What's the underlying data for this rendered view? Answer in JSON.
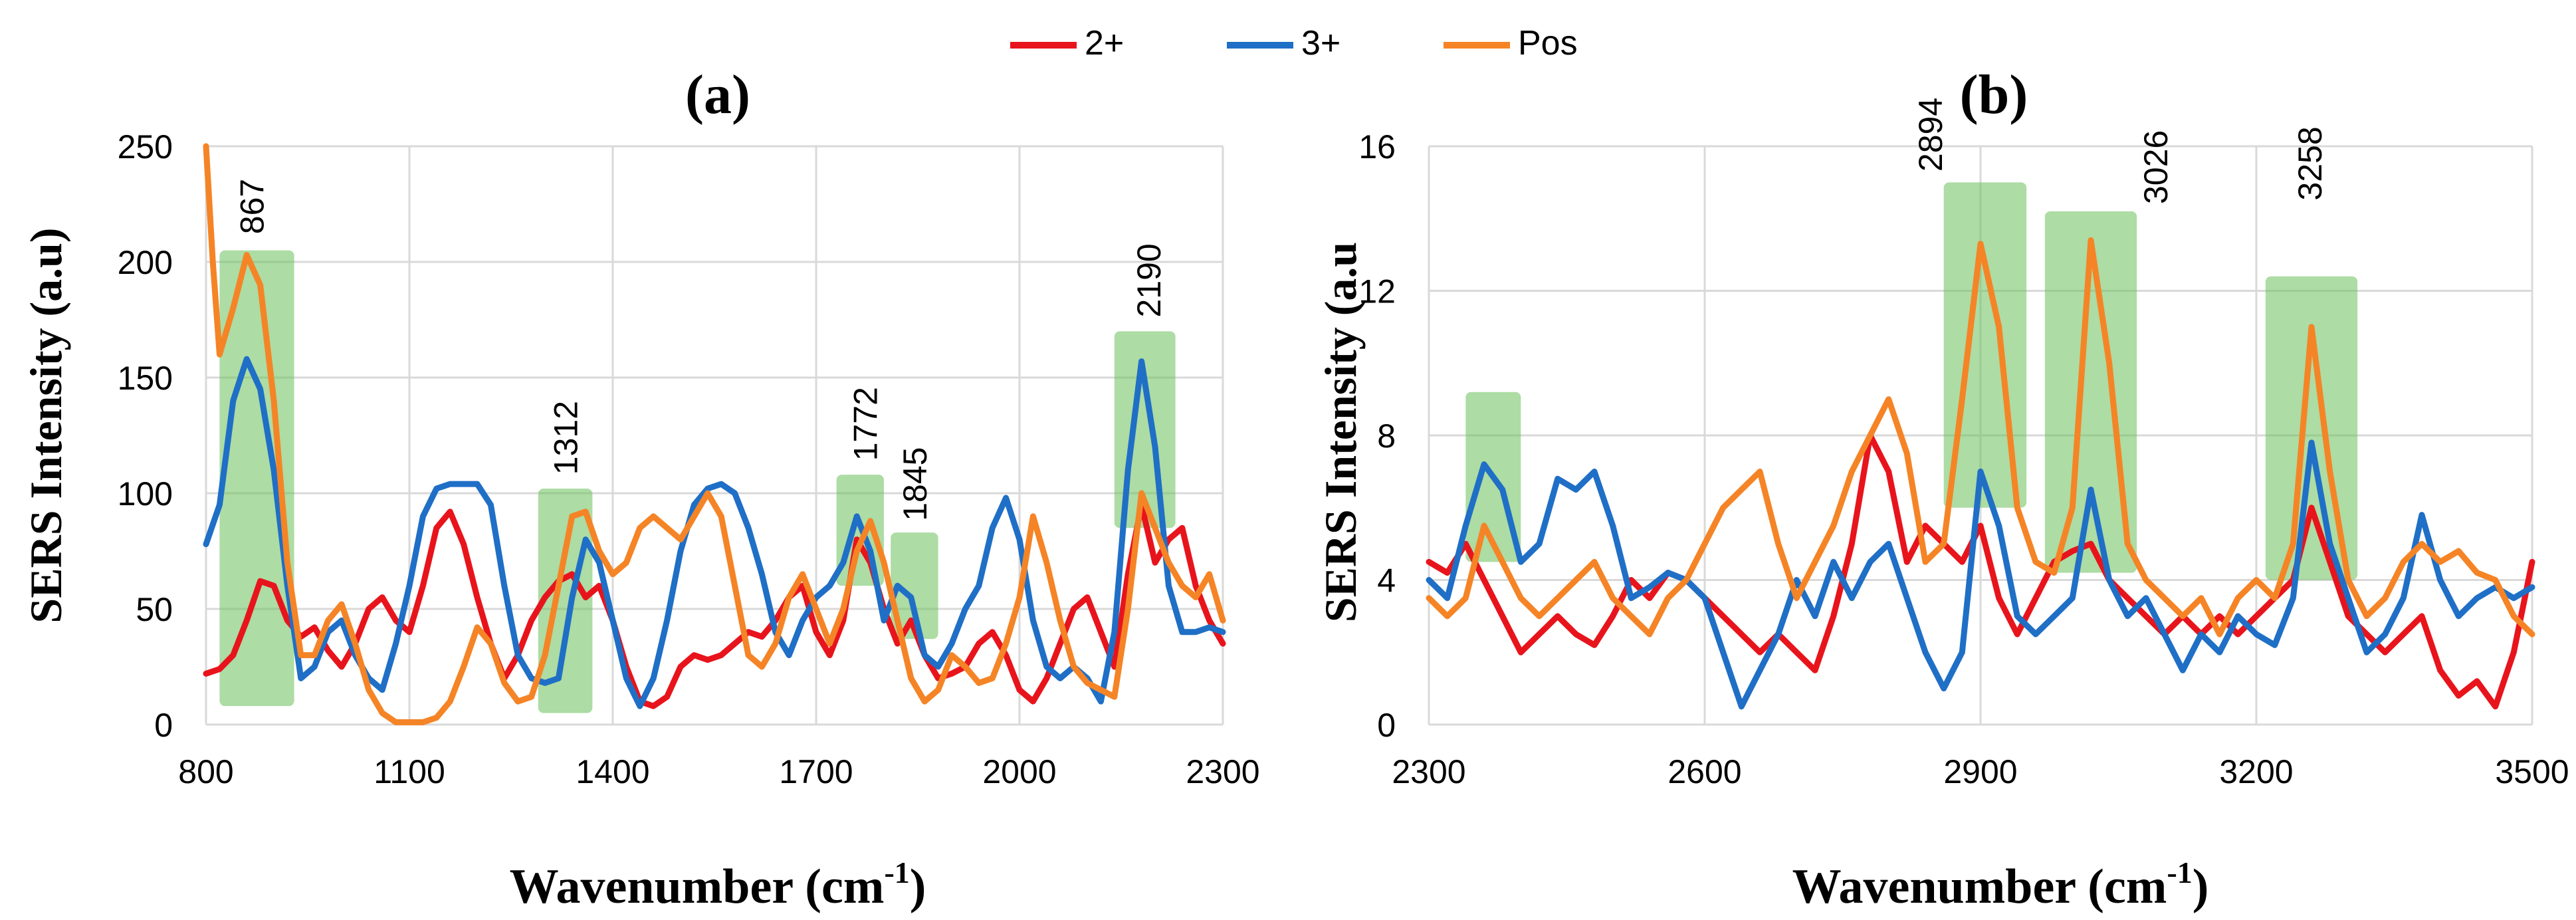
{
  "legend": [
    {
      "key": "2+",
      "label": "2+",
      "color": "#e8141c"
    },
    {
      "key": "3+",
      "label": "3+",
      "color": "#1f6fc6"
    },
    {
      "key": "pos",
      "label": "Pos",
      "color": "#f58426"
    }
  ],
  "chart_data": [
    {
      "type": "line",
      "panel_label": "(a)",
      "xlabel": "Wavenumber (cm",
      "xlabel_sup": "-1",
      "xlabel_end": ")",
      "ylabel": "SERS Intensity (a.u)",
      "xlim": [
        800,
        2300
      ],
      "ylim": [
        0,
        250
      ],
      "xticks": [
        800,
        1100,
        1400,
        1700,
        2000,
        2300
      ],
      "xtick_labels": [
        "800",
        "1100",
        "1400",
        "1700",
        "2000",
        "2300"
      ],
      "yticks": [
        0,
        50,
        100,
        150,
        200,
        250
      ],
      "ytick_labels": [
        "0",
        "50",
        "100",
        "150",
        "200",
        "250"
      ],
      "highlights": [
        {
          "x0": 820,
          "x1": 930,
          "y0": 8,
          "y1": 205
        },
        {
          "x0": 1290,
          "x1": 1370,
          "y0": 5,
          "y1": 102
        },
        {
          "x0": 1730,
          "x1": 1800,
          "y0": 60,
          "y1": 108
        },
        {
          "x0": 1810,
          "x1": 1880,
          "y0": 37,
          "y1": 83
        },
        {
          "x0": 2140,
          "x1": 2230,
          "y0": 85,
          "y1": 170
        }
      ],
      "peak_labels": [
        {
          "text": "867",
          "x": 867,
          "y": 212
        },
        {
          "text": "1312",
          "x": 1330,
          "y": 108
        },
        {
          "text": "1772",
          "x": 1772,
          "y": 114
        },
        {
          "text": "1845",
          "x": 1845,
          "y": 88
        },
        {
          "text": "2190",
          "x": 2190,
          "y": 176
        }
      ],
      "series": [
        {
          "key": "2+",
          "name": "2+",
          "x": [
            800,
            820,
            840,
            860,
            880,
            900,
            920,
            940,
            960,
            980,
            1000,
            1020,
            1040,
            1060,
            1080,
            1100,
            1120,
            1140,
            1160,
            1180,
            1200,
            1220,
            1240,
            1260,
            1280,
            1300,
            1320,
            1340,
            1360,
            1380,
            1400,
            1420,
            1440,
            1460,
            1480,
            1500,
            1520,
            1540,
            1560,
            1580,
            1600,
            1620,
            1640,
            1660,
            1680,
            1700,
            1720,
            1740,
            1760,
            1780,
            1800,
            1820,
            1840,
            1860,
            1880,
            1900,
            1920,
            1940,
            1960,
            1980,
            2000,
            2020,
            2040,
            2060,
            2080,
            2100,
            2120,
            2140,
            2160,
            2180,
            2200,
            2220,
            2240,
            2260,
            2280,
            2300
          ],
          "values": [
            22,
            24,
            30,
            45,
            62,
            60,
            45,
            38,
            42,
            32,
            25,
            35,
            50,
            55,
            45,
            40,
            60,
            85,
            92,
            78,
            55,
            35,
            20,
            30,
            45,
            55,
            62,
            65,
            55,
            60,
            45,
            25,
            10,
            8,
            12,
            25,
            30,
            28,
            30,
            35,
            40,
            38,
            45,
            55,
            60,
            40,
            30,
            45,
            80,
            70,
            50,
            35,
            45,
            30,
            20,
            22,
            25,
            35,
            40,
            30,
            15,
            10,
            20,
            35,
            50,
            55,
            40,
            25,
            65,
            95,
            70,
            80,
            85,
            60,
            45,
            35
          ]
        },
        {
          "key": "3+",
          "name": "3+",
          "x": [
            800,
            820,
            840,
            860,
            880,
            900,
            920,
            940,
            960,
            980,
            1000,
            1020,
            1040,
            1060,
            1080,
            1100,
            1120,
            1140,
            1160,
            1180,
            1200,
            1220,
            1240,
            1260,
            1280,
            1300,
            1320,
            1340,
            1360,
            1380,
            1400,
            1420,
            1440,
            1460,
            1480,
            1500,
            1520,
            1540,
            1560,
            1580,
            1600,
            1620,
            1640,
            1660,
            1680,
            1700,
            1720,
            1740,
            1760,
            1780,
            1800,
            1820,
            1840,
            1860,
            1880,
            1900,
            1920,
            1940,
            1960,
            1980,
            2000,
            2020,
            2040,
            2060,
            2080,
            2100,
            2120,
            2140,
            2160,
            2180,
            2200,
            2220,
            2240,
            2260,
            2280,
            2300
          ],
          "values": [
            78,
            95,
            140,
            158,
            145,
            110,
            60,
            20,
            25,
            40,
            45,
            30,
            20,
            15,
            35,
            60,
            90,
            102,
            104,
            104,
            104,
            95,
            60,
            30,
            20,
            18,
            20,
            55,
            80,
            70,
            45,
            20,
            8,
            20,
            45,
            75,
            95,
            102,
            104,
            100,
            85,
            65,
            40,
            30,
            45,
            55,
            60,
            70,
            90,
            75,
            45,
            60,
            55,
            30,
            25,
            35,
            50,
            60,
            85,
            98,
            80,
            45,
            25,
            20,
            25,
            20,
            10,
            40,
            110,
            157,
            120,
            60,
            40,
            40,
            42,
            40
          ]
        },
        {
          "key": "pos",
          "name": "Pos",
          "x": [
            800,
            810,
            820,
            840,
            860,
            880,
            900,
            920,
            940,
            960,
            980,
            1000,
            1020,
            1040,
            1060,
            1080,
            1100,
            1120,
            1140,
            1160,
            1180,
            1200,
            1220,
            1240,
            1260,
            1280,
            1300,
            1320,
            1340,
            1360,
            1380,
            1400,
            1420,
            1440,
            1460,
            1480,
            1500,
            1520,
            1540,
            1560,
            1580,
            1600,
            1620,
            1640,
            1660,
            1680,
            1700,
            1720,
            1740,
            1760,
            1780,
            1800,
            1820,
            1840,
            1860,
            1880,
            1900,
            1920,
            1940,
            1960,
            1980,
            2000,
            2020,
            2040,
            2060,
            2080,
            2100,
            2120,
            2140,
            2160,
            2180,
            2200,
            2220,
            2240,
            2260,
            2280,
            2300
          ],
          "values": [
            250,
            200,
            160,
            180,
            203,
            190,
            140,
            70,
            30,
            30,
            45,
            52,
            35,
            15,
            5,
            1,
            1,
            1,
            3,
            10,
            25,
            42,
            35,
            18,
            10,
            12,
            30,
            60,
            90,
            92,
            75,
            65,
            70,
            85,
            90,
            85,
            80,
            90,
            100,
            90,
            60,
            30,
            25,
            35,
            55,
            65,
            50,
            35,
            50,
            75,
            88,
            70,
            45,
            20,
            10,
            15,
            30,
            25,
            18,
            20,
            35,
            55,
            90,
            70,
            45,
            25,
            18,
            15,
            12,
            50,
            100,
            85,
            70,
            60,
            55,
            65,
            45
          ]
        }
      ]
    },
    {
      "type": "line",
      "panel_label": "(b)",
      "xlabel": "Wavenumber (cm",
      "xlabel_sup": "-1",
      "xlabel_end": ")",
      "ylabel": "SERS Intensity (a.u",
      "xlim": [
        2300,
        3500
      ],
      "ylim": [
        0,
        16
      ],
      "xticks": [
        2300,
        2600,
        2900,
        3200,
        3500
      ],
      "xtick_labels": [
        "2300",
        "2600",
        "2900",
        "3200",
        "3500"
      ],
      "yticks": [
        0,
        4,
        8,
        12,
        16
      ],
      "ytick_labels": [
        "0",
        "4",
        "8",
        "12",
        "16"
      ],
      "highlights": [
        {
          "x0": 2340,
          "x1": 2400,
          "y0": 4.5,
          "y1": 9.2
        },
        {
          "x0": 2860,
          "x1": 2950,
          "y0": 6.0,
          "y1": 15.0
        },
        {
          "x0": 2970,
          "x1": 3070,
          "y0": 4.2,
          "y1": 14.2
        },
        {
          "x0": 3210,
          "x1": 3310,
          "y0": 4.0,
          "y1": 12.4
        }
      ],
      "peak_labels": [
        {
          "text": "2894",
          "x": 2845,
          "y": 15.3
        },
        {
          "text": "3026",
          "x": 3090,
          "y": 14.4
        },
        {
          "text": "3258",
          "x": 3258,
          "y": 14.5
        }
      ],
      "series": [
        {
          "key": "2+",
          "name": "2+",
          "x": [
            2300,
            2320,
            2340,
            2360,
            2380,
            2400,
            2420,
            2440,
            2460,
            2480,
            2500,
            2520,
            2540,
            2560,
            2580,
            2600,
            2620,
            2640,
            2660,
            2680,
            2700,
            2720,
            2740,
            2760,
            2780,
            2800,
            2820,
            2840,
            2860,
            2880,
            2900,
            2920,
            2940,
            2960,
            2980,
            3000,
            3020,
            3040,
            3060,
            3080,
            3100,
            3120,
            3140,
            3160,
            3180,
            3200,
            3220,
            3240,
            3260,
            3280,
            3300,
            3320,
            3340,
            3360,
            3380,
            3400,
            3420,
            3440,
            3460,
            3480,
            3500
          ],
          "values": [
            4.5,
            4.2,
            5.0,
            4.0,
            3.0,
            2.0,
            2.5,
            3.0,
            2.5,
            2.2,
            3.0,
            4.0,
            3.5,
            4.2,
            4.0,
            3.5,
            3.0,
            2.5,
            2.0,
            2.5,
            2.0,
            1.5,
            3.0,
            5.0,
            8.0,
            7.0,
            4.5,
            5.5,
            5.0,
            4.5,
            5.5,
            3.5,
            2.5,
            3.5,
            4.5,
            4.8,
            5.0,
            4.0,
            3.5,
            3.0,
            2.5,
            3.0,
            2.5,
            3.0,
            2.5,
            3.0,
            3.5,
            4.0,
            6.0,
            4.5,
            3.0,
            2.5,
            2.0,
            2.5,
            3.0,
            1.5,
            0.8,
            1.2,
            0.5,
            2.0,
            4.5
          ]
        },
        {
          "key": "3+",
          "name": "3+",
          "x": [
            2300,
            2320,
            2340,
            2360,
            2380,
            2400,
            2420,
            2440,
            2460,
            2480,
            2500,
            2520,
            2540,
            2560,
            2580,
            2600,
            2620,
            2640,
            2660,
            2680,
            2700,
            2720,
            2740,
            2760,
            2780,
            2800,
            2820,
            2840,
            2860,
            2880,
            2900,
            2920,
            2940,
            2960,
            2980,
            3000,
            3020,
            3040,
            3060,
            3080,
            3100,
            3120,
            3140,
            3160,
            3180,
            3200,
            3220,
            3240,
            3260,
            3280,
            3300,
            3320,
            3340,
            3360,
            3380,
            3400,
            3420,
            3440,
            3460,
            3480,
            3500
          ],
          "values": [
            4.0,
            3.5,
            5.5,
            7.2,
            6.5,
            4.5,
            5.0,
            6.8,
            6.5,
            7.0,
            5.5,
            3.5,
            3.8,
            4.2,
            4.0,
            3.5,
            2.0,
            0.5,
            1.5,
            2.5,
            4.0,
            3.0,
            4.5,
            3.5,
            4.5,
            5.0,
            3.5,
            2.0,
            1.0,
            2.0,
            7.0,
            5.5,
            3.0,
            2.5,
            3.0,
            3.5,
            6.5,
            4.0,
            3.0,
            3.5,
            2.5,
            1.5,
            2.5,
            2.0,
            3.0,
            2.5,
            2.2,
            3.5,
            7.8,
            5.0,
            3.5,
            2.0,
            2.5,
            3.5,
            5.8,
            4.0,
            3.0,
            3.5,
            3.8,
            3.5,
            3.8
          ]
        },
        {
          "key": "pos",
          "name": "Pos",
          "x": [
            2300,
            2320,
            2340,
            2360,
            2380,
            2400,
            2420,
            2440,
            2460,
            2480,
            2500,
            2520,
            2540,
            2560,
            2580,
            2600,
            2620,
            2640,
            2660,
            2680,
            2700,
            2720,
            2740,
            2760,
            2780,
            2800,
            2820,
            2840,
            2860,
            2880,
            2900,
            2920,
            2940,
            2960,
            2980,
            3000,
            3020,
            3040,
            3060,
            3080,
            3100,
            3120,
            3140,
            3160,
            3180,
            3200,
            3220,
            3240,
            3260,
            3280,
            3300,
            3320,
            3340,
            3360,
            3380,
            3400,
            3420,
            3440,
            3460,
            3480,
            3500
          ],
          "values": [
            3.5,
            3.0,
            3.5,
            5.5,
            4.5,
            3.5,
            3.0,
            3.5,
            4.0,
            4.5,
            3.5,
            3.0,
            2.5,
            3.5,
            4.0,
            5.0,
            6.0,
            6.5,
            7.0,
            5.0,
            3.5,
            4.5,
            5.5,
            7.0,
            8.0,
            9.0,
            7.5,
            4.5,
            5.0,
            9.0,
            13.3,
            11.0,
            6.0,
            4.5,
            4.2,
            6.0,
            13.4,
            10.0,
            5.0,
            4.0,
            3.5,
            3.0,
            3.5,
            2.5,
            3.5,
            4.0,
            3.5,
            5.0,
            11.0,
            7.0,
            4.0,
            3.0,
            3.5,
            4.5,
            5.0,
            4.5,
            4.8,
            4.2,
            4.0,
            3.0,
            2.5
          ]
        }
      ]
    }
  ]
}
